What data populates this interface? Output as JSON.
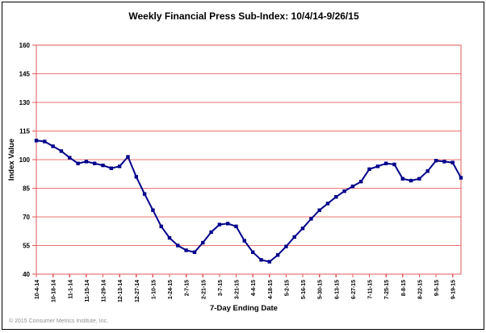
{
  "window": {
    "footer": "© 2015 Consumer Metrics Institute, Inc."
  },
  "chart_data": {
    "type": "line",
    "title": "Weekly Financial Press Sub-Index: 10/4/14-9/26/15",
    "xlabel": "7-Day Ending Date",
    "ylabel": "Index Value",
    "series_name": "Weekly Financial Press Sub-Index",
    "x": [
      "10-4-14",
      "10-11-14",
      "10-18-14",
      "10-25-14",
      "11-1-14",
      "11-8-14",
      "11-15-14",
      "11-22-14",
      "11-29-14",
      "12-6-14",
      "12-13-14",
      "12-20-14",
      "12-27-14",
      "1-3-15",
      "1-10-15",
      "1-17-15",
      "1-24-15",
      "1-31-15",
      "2-7-15",
      "2-14-15",
      "2-21-15",
      "2-28-15",
      "3-7-15",
      "3-14-15",
      "3-21-15",
      "3-28-15",
      "4-4-15",
      "4-11-15",
      "4-18-15",
      "4-25-15",
      "5-2-15",
      "5-9-15",
      "5-16-15",
      "5-23-15",
      "5-30-15",
      "6-6-15",
      "6-13-15",
      "6-20-15",
      "6-27-15",
      "7-4-15",
      "7-11-15",
      "7-18-15",
      "7-25-15",
      "8-1-15",
      "8-8-15",
      "8-15-15",
      "8-22-15",
      "8-29-15",
      "9-5-15",
      "9-12-15",
      "9-19-15",
      "9-26-15"
    ],
    "values": [
      110,
      109.5,
      107,
      104.5,
      101,
      98,
      99,
      98,
      97,
      95.5,
      96.5,
      101.5,
      91,
      82,
      73.5,
      65,
      59,
      55,
      52.5,
      51.5,
      56.5,
      62,
      66,
      66.5,
      65,
      57.5,
      51.5,
      47.5,
      46.5,
      50,
      54.5,
      59.5,
      64,
      69,
      73.5,
      77,
      80.5,
      83.5,
      86,
      88.5,
      95,
      96.5,
      98,
      97.5,
      90,
      89,
      90,
      94,
      99.5,
      99,
      98.5,
      90.5
    ],
    "x_tick_labels": [
      "10-4-14",
      "10-18-14",
      "11-1-14",
      "11-15-14",
      "11-29-14",
      "12-13-14",
      "12-27-14",
      "1-10-15",
      "1-24-15",
      "2-7-15",
      "2-21-15",
      "3-7-15",
      "3-21-15",
      "4-4-15",
      "4-18-15",
      "5-2-15",
      "5-16-15",
      "5-30-15",
      "6-13-15",
      "6-27-15",
      "7-11-15",
      "7-25-15",
      "8-8-15",
      "8-22-15",
      "9-5-15",
      "9-19-15"
    ],
    "x_tick_step": 2,
    "y_ticks": [
      40,
      55,
      70,
      85,
      100,
      115,
      130,
      145,
      160
    ],
    "ylim": [
      40,
      160
    ],
    "grid": "horizontal-red-lines",
    "legend": "none",
    "marker": "square",
    "colors": {
      "line": "#00008b",
      "marker": "#00008b",
      "grid": "#ee7272",
      "axis_frame": "#dd5a5a",
      "title_text": "#000000",
      "footer_text": "#909090"
    }
  }
}
